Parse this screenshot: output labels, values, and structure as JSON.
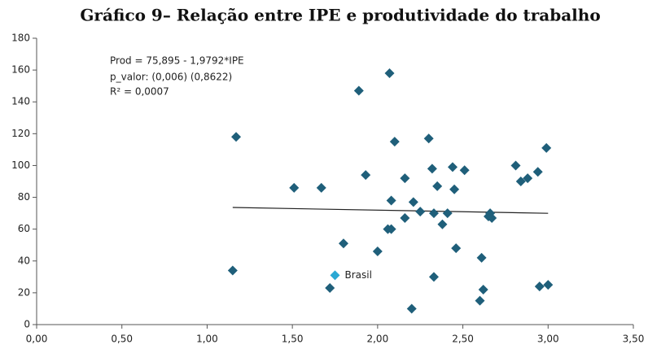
{
  "chart_data": {
    "type": "scatter",
    "title": "Gráfico 9– Relação entre IPE e produtividade do trabalho",
    "annotations": [
      "Prod = 75,895 - 1,9792*IPE",
      "p_valor: (0,006) (0,8622)",
      "R² = 0,0007"
    ],
    "xlim": [
      0,
      3.5
    ],
    "xticks": [
      {
        "value": 0,
        "label": "0,00"
      },
      {
        "value": 0.5,
        "label": "0,50"
      },
      {
        "value": 1,
        "label": "1,00"
      },
      {
        "value": 1.5,
        "label": "1,50"
      },
      {
        "value": 2,
        "label": "2,00"
      },
      {
        "value": 2.5,
        "label": "2,50"
      },
      {
        "value": 3,
        "label": "3,00"
      },
      {
        "value": 3.5,
        "label": "3,50"
      }
    ],
    "ylim": [
      0,
      180
    ],
    "yticks": [
      0,
      20,
      40,
      60,
      80,
      100,
      120,
      140,
      160,
      180
    ],
    "series": [
      {
        "color": "#1f5f7a",
        "x": [
          1.17,
          1.15,
          1.51,
          1.67,
          1.8,
          1.89,
          2.07,
          1.93,
          2.0,
          1.72,
          2.1,
          2.08,
          2.16,
          2.21,
          2.06,
          2.08,
          2.16,
          2.25,
          2.3,
          2.32,
          2.35,
          2.33,
          2.41,
          2.38,
          2.44,
          2.51,
          2.45,
          2.46,
          2.33,
          2.2,
          2.61,
          2.62,
          2.6,
          2.81,
          2.84,
          2.88,
          2.94,
          2.99,
          2.95,
          3.0,
          2.65,
          2.66,
          2.67
        ],
        "values": [
          118,
          34,
          86,
          86,
          51,
          147,
          158,
          94,
          46,
          23,
          115,
          78,
          92,
          77,
          60,
          60,
          67,
          71,
          117,
          98,
          87,
          70,
          70,
          63,
          99,
          97,
          85,
          48,
          30,
          10,
          42,
          22,
          15,
          100,
          90,
          92,
          96,
          111,
          24,
          25,
          68,
          70,
          67
        ]
      },
      {
        "name": "Brasil",
        "color": "#2aa8d4",
        "x": [
          1.75
        ],
        "values": [
          31
        ]
      }
    ],
    "trendline": {
      "color": "#222",
      "x": [
        1.15,
        3.0
      ],
      "values": [
        73.62,
        69.96
      ]
    }
  }
}
